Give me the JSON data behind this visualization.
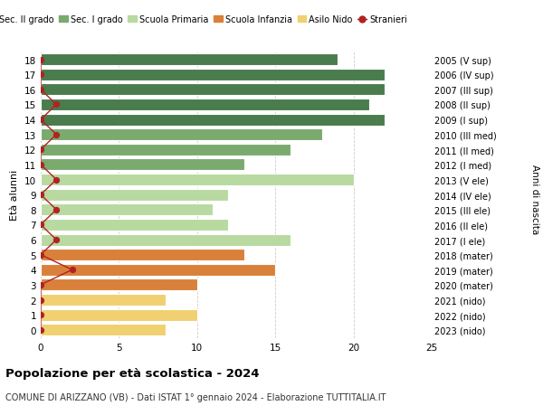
{
  "ages": [
    18,
    17,
    16,
    15,
    14,
    13,
    12,
    11,
    10,
    9,
    8,
    7,
    6,
    5,
    4,
    3,
    2,
    1,
    0
  ],
  "years": [
    "2005 (V sup)",
    "2006 (IV sup)",
    "2007 (III sup)",
    "2008 (II sup)",
    "2009 (I sup)",
    "2010 (III med)",
    "2011 (II med)",
    "2012 (I med)",
    "2013 (V ele)",
    "2014 (IV ele)",
    "2015 (III ele)",
    "2016 (II ele)",
    "2017 (I ele)",
    "2018 (mater)",
    "2019 (mater)",
    "2020 (mater)",
    "2021 (nido)",
    "2022 (nido)",
    "2023 (nido)"
  ],
  "values": [
    19,
    22,
    22,
    21,
    22,
    18,
    16,
    13,
    20,
    12,
    11,
    12,
    16,
    13,
    15,
    10,
    8,
    10,
    8
  ],
  "bar_colors": [
    "#4a7c4e",
    "#4a7c4e",
    "#4a7c4e",
    "#4a7c4e",
    "#4a7c4e",
    "#7aaa6e",
    "#7aaa6e",
    "#7aaa6e",
    "#b8d9a0",
    "#b8d9a0",
    "#b8d9a0",
    "#b8d9a0",
    "#b8d9a0",
    "#d9813a",
    "#d9813a",
    "#d9813a",
    "#f0d070",
    "#f0d070",
    "#f0d070"
  ],
  "legend_labels": [
    "Sec. II grado",
    "Sec. I grado",
    "Scuola Primaria",
    "Scuola Infanzia",
    "Asilo Nido",
    "Stranieri"
  ],
  "legend_colors": [
    "#4a7c4e",
    "#7aaa6e",
    "#b8d9a0",
    "#d9813a",
    "#f0d070",
    "#b22222"
  ],
  "title": "Popolazione per età scolastica - 2024",
  "subtitle": "COMUNE DI ARIZZANO (VB) - Dati ISTAT 1° gennaio 2024 - Elaborazione TUTTITALIA.IT",
  "ylabel_left": "Età alunni",
  "ylabel_right": "Anni di nascita",
  "xlim": [
    0,
    25
  ],
  "xticks": [
    0,
    5,
    10,
    15,
    20,
    25
  ],
  "stranieri_x": [
    0,
    0,
    0,
    1,
    0,
    1,
    0,
    0,
    1,
    0,
    1,
    0,
    1,
    0,
    2,
    0,
    0,
    0,
    0
  ],
  "stranieri_color": "#b22222",
  "bg_color": "#ffffff",
  "grid_color": "#cccccc"
}
